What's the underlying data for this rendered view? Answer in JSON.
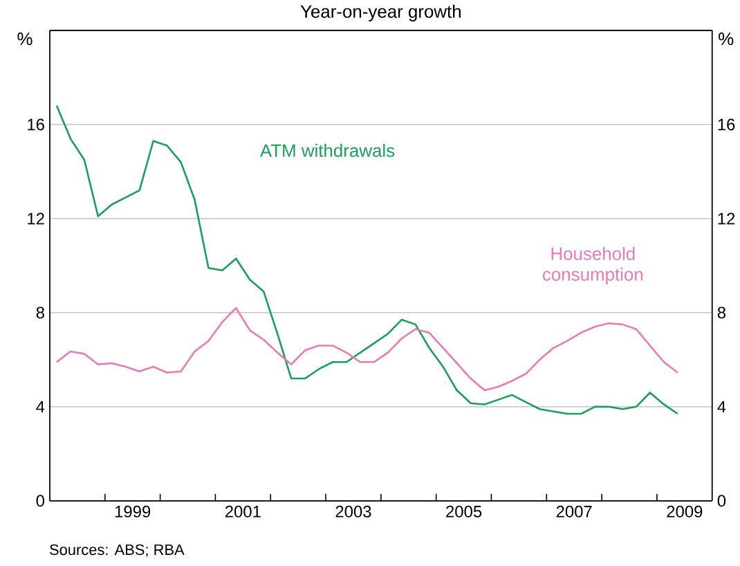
{
  "chart_data": {
    "type": "line",
    "title": "Year-on-year growth",
    "ylabel": "%",
    "y2label": "%",
    "annotations": [
      "Sources: ABS; RBA"
    ],
    "x": [
      1998.125,
      1998.375,
      1998.625,
      1998.875,
      1999.125,
      1999.375,
      1999.625,
      1999.875,
      2000.125,
      2000.375,
      2000.625,
      2000.875,
      2001.125,
      2001.375,
      2001.625,
      2001.875,
      2002.125,
      2002.375,
      2002.625,
      2002.875,
      2003.125,
      2003.375,
      2003.625,
      2003.875,
      2004.125,
      2004.375,
      2004.625,
      2004.875,
      2005.125,
      2005.375,
      2005.625,
      2005.875,
      2006.125,
      2006.375,
      2006.625,
      2006.875,
      2007.125,
      2007.375,
      2007.625,
      2007.875,
      2008.125,
      2008.375,
      2008.625,
      2008.875,
      2009.125,
      2009.375
    ],
    "series": [
      {
        "name": "ATM withdrawals",
        "color": "#1b9e5a",
        "values": [
          16.8,
          15.4,
          14.5,
          12.1,
          12.6,
          12.9,
          13.2,
          15.3,
          15.1,
          14.4,
          12.8,
          9.9,
          9.8,
          10.3,
          9.4,
          8.9,
          7.1,
          5.2,
          5.2,
          5.6,
          5.9,
          5.9,
          6.3,
          6.7,
          7.1,
          7.7,
          7.5,
          6.5,
          5.7,
          4.7,
          4.15,
          4.1,
          4.3,
          4.5,
          4.2,
          3.9,
          3.8,
          3.7,
          3.7,
          4.0,
          4.0,
          3.9,
          4.0,
          4.6,
          4.1,
          3.7
        ]
      },
      {
        "name": "Household consumption",
        "color": "#e87bb4",
        "values": [
          5.9,
          6.35,
          6.25,
          5.8,
          5.85,
          5.7,
          5.5,
          5.7,
          5.45,
          5.5,
          6.35,
          6.8,
          7.6,
          8.2,
          7.25,
          6.85,
          6.3,
          5.8,
          6.4,
          6.6,
          6.6,
          6.3,
          5.9,
          5.9,
          6.3,
          6.9,
          7.3,
          7.15,
          6.5,
          5.85,
          5.2,
          4.7,
          4.85,
          5.1,
          5.4,
          6.0,
          6.5,
          6.8,
          7.15,
          7.4,
          7.55,
          7.5,
          7.3,
          6.6,
          5.9,
          5.45
        ]
      }
    ],
    "xlim": [
      1998,
      2010
    ],
    "xticks": [
      {
        "value": 1999,
        "label": null
      },
      {
        "value": 2000,
        "label": null
      },
      {
        "value": 2001,
        "label": null
      },
      {
        "value": 2002,
        "label": null
      },
      {
        "value": 2003,
        "label": null
      },
      {
        "value": 2004,
        "label": null
      },
      {
        "value": 2005,
        "label": null
      },
      {
        "value": 2006,
        "label": null
      },
      {
        "value": 2007,
        "label": null
      },
      {
        "value": 2008,
        "label": null
      },
      {
        "value": 2009,
        "label": null
      },
      {
        "value": 1999.5,
        "label": "1999"
      },
      {
        "value": 2001.5,
        "label": "2001"
      },
      {
        "value": 2003.5,
        "label": "2003"
      },
      {
        "value": 2005.5,
        "label": "2005"
      },
      {
        "value": 2007.5,
        "label": "2007"
      },
      {
        "value": 2009.5,
        "label": "2009"
      }
    ],
    "ylim": [
      0,
      20
    ],
    "yticks": [
      0,
      4,
      8,
      12,
      16
    ],
    "y2lim": [
      0,
      20
    ],
    "y2ticks": [
      0,
      4,
      8,
      12,
      16
    ],
    "grid": "y",
    "legend": false,
    "marker": "none",
    "line_style": "solid"
  }
}
